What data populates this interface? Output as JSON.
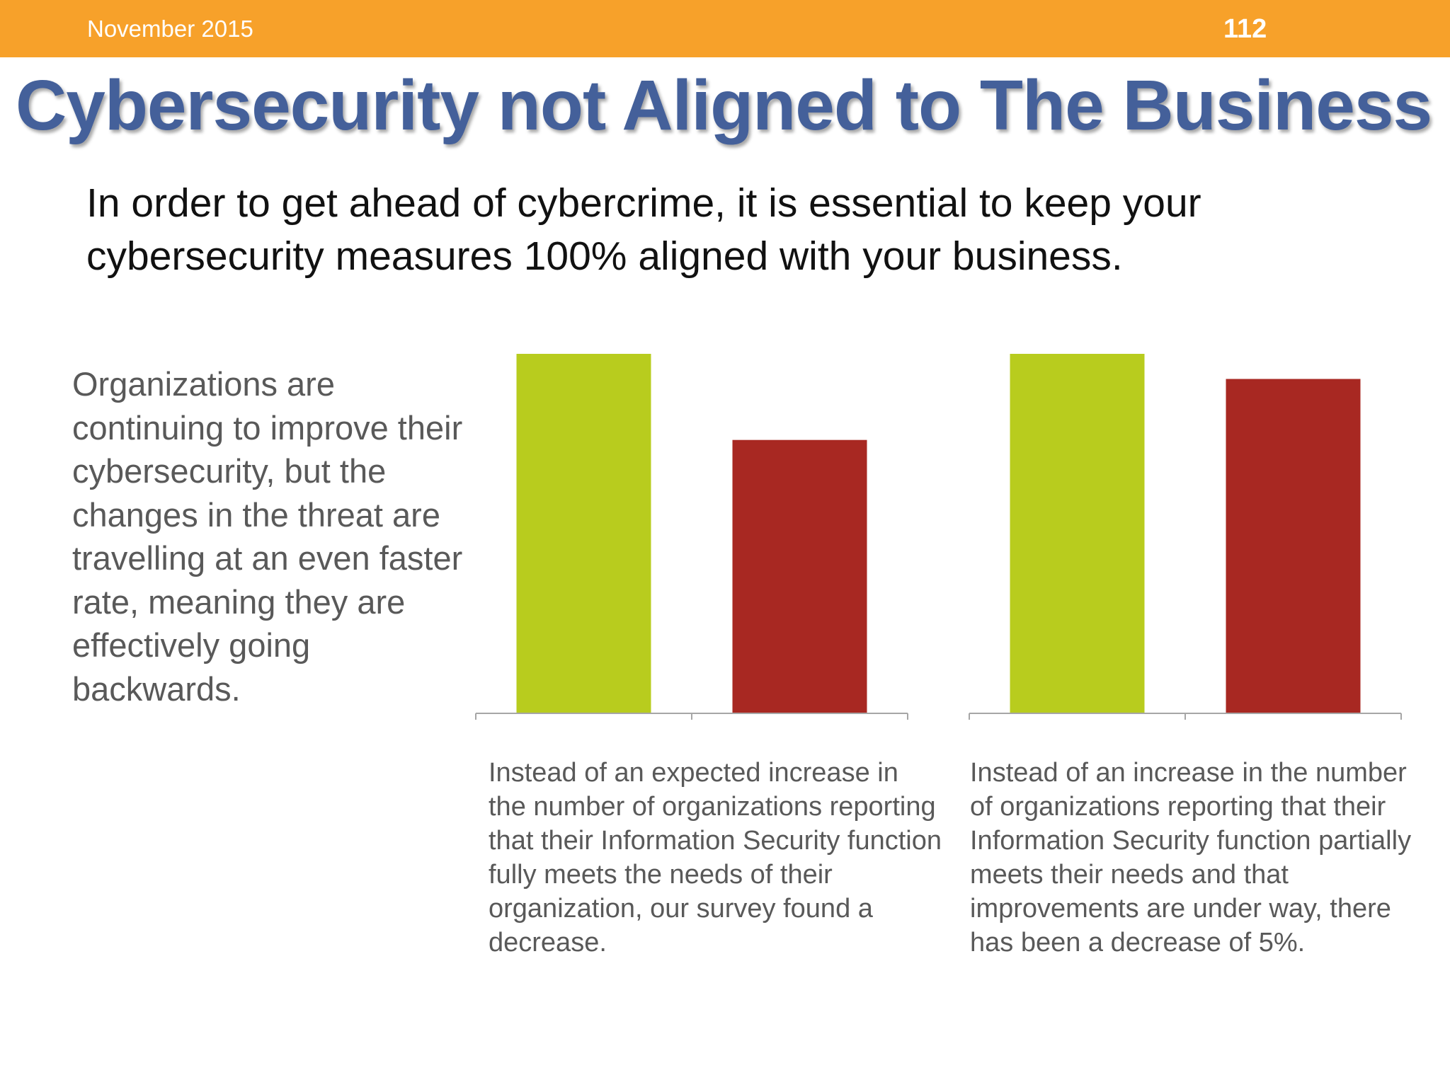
{
  "header": {
    "date": "November 2015",
    "page_number": "112"
  },
  "title": "Cybersecurity not Aligned to The Business",
  "lead_text": "In order to get ahead of cybercrime, it is essential to keep your cybersecurity measures 100% aligned with your business.",
  "side_text": "Organizations are continuing to improve their cybersecurity, but the changes in the threat are travelling at an even faster rate, meaning they are effectively going backwards.",
  "colors": {
    "header_bar": "#f7a12a",
    "title": "#44609a",
    "bar_green": "#b8cc1e",
    "bar_red": "#a82822",
    "axis": "#a6a6a6"
  },
  "chart_data": [
    {
      "type": "bar",
      "title": "",
      "categories": [
        "",
        ""
      ],
      "values": [
        100,
        76
      ],
      "bar_colors": [
        "#b8cc1e",
        "#a82822"
      ],
      "ylim": [
        0,
        100
      ],
      "grid": false,
      "caption": "Instead of an expected increase in the number of organizations reporting that their Information Security function fully meets the needs of their organization, our survey found a decrease."
    },
    {
      "type": "bar",
      "title": "",
      "categories": [
        "",
        ""
      ],
      "values": [
        100,
        93
      ],
      "bar_colors": [
        "#b8cc1e",
        "#a82822"
      ],
      "ylim": [
        0,
        100
      ],
      "grid": false,
      "caption": "Instead of an increase in the number of organizations reporting that their Information Security function partially meets their needs and that improvements are under way, there has been a decrease  of 5%."
    }
  ]
}
